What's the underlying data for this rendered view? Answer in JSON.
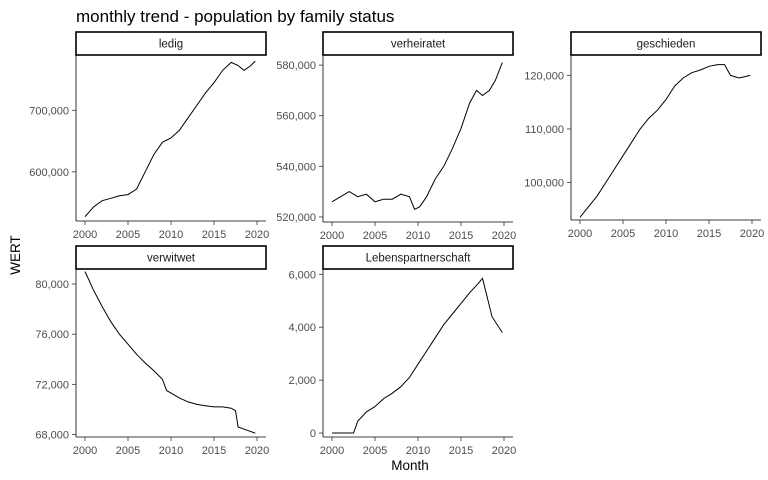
{
  "chart_data": {
    "type": "line",
    "title": "monthly trend - population by family status",
    "xlabel": "Month",
    "ylabel": "WERT",
    "x_ticks": [
      2000,
      2005,
      2010,
      2015,
      2020
    ],
    "xlim": [
      2000,
      2020
    ],
    "grid": false,
    "legend": "none",
    "line_color": "#000000",
    "panels": [
      {
        "name": "ledig",
        "ylim": [
          520000,
          790000
        ],
        "y_ticks": [
          600000,
          700000
        ],
        "y_tick_labels": [
          "600,000",
          "700,000"
        ],
        "points": [
          [
            2000,
            527000
          ],
          [
            2001,
            543000
          ],
          [
            2002,
            553000
          ],
          [
            2003,
            557000
          ],
          [
            2004,
            561000
          ],
          [
            2005,
            563000
          ],
          [
            2006,
            572000
          ],
          [
            2007,
            600000
          ],
          [
            2008,
            628000
          ],
          [
            2009,
            648000
          ],
          [
            2010,
            655000
          ],
          [
            2011,
            668000
          ],
          [
            2012,
            688000
          ],
          [
            2013,
            708000
          ],
          [
            2014,
            728000
          ],
          [
            2015,
            745000
          ],
          [
            2016,
            765000
          ],
          [
            2017,
            778000
          ],
          [
            2017.8,
            773000
          ],
          [
            2018.5,
            765000
          ],
          [
            2019.2,
            772000
          ],
          [
            2019.8,
            780000
          ]
        ]
      },
      {
        "name": "verheiratet",
        "ylim": [
          518000,
          584000
        ],
        "y_ticks": [
          520000,
          540000,
          560000,
          580000
        ],
        "y_tick_labels": [
          "520,000",
          "540,000",
          "560,000",
          "580,000"
        ],
        "points": [
          [
            2000,
            526000
          ],
          [
            2001,
            528000
          ],
          [
            2002,
            530000
          ],
          [
            2003,
            528000
          ],
          [
            2004,
            529000
          ],
          [
            2005,
            526000
          ],
          [
            2006,
            527000
          ],
          [
            2007,
            527000
          ],
          [
            2008,
            529000
          ],
          [
            2009,
            528000
          ],
          [
            2009.6,
            523000
          ],
          [
            2010.2,
            524000
          ],
          [
            2011,
            528000
          ],
          [
            2012,
            535000
          ],
          [
            2013,
            540000
          ],
          [
            2014,
            547000
          ],
          [
            2015,
            555000
          ],
          [
            2016,
            565000
          ],
          [
            2016.8,
            570000
          ],
          [
            2017.5,
            568000
          ],
          [
            2018.3,
            570000
          ],
          [
            2019,
            574000
          ],
          [
            2019.8,
            581000
          ]
        ]
      },
      {
        "name": "geschieden",
        "ylim": [
          93000,
          123800
        ],
        "y_ticks": [
          100000,
          110000,
          120000
        ],
        "y_tick_labels": [
          "100,000",
          "110,000",
          "120,000"
        ],
        "points": [
          [
            2000,
            93500
          ],
          [
            2001,
            95500
          ],
          [
            2002,
            97500
          ],
          [
            2003,
            100000
          ],
          [
            2004,
            102500
          ],
          [
            2005,
            105000
          ],
          [
            2006,
            107500
          ],
          [
            2007,
            110000
          ],
          [
            2008,
            112000
          ],
          [
            2009,
            113500
          ],
          [
            2010,
            115500
          ],
          [
            2011,
            118000
          ],
          [
            2012,
            119500
          ],
          [
            2013,
            120500
          ],
          [
            2014,
            121000
          ],
          [
            2015,
            121700
          ],
          [
            2016,
            122000
          ],
          [
            2016.8,
            122000
          ],
          [
            2017.5,
            120000
          ],
          [
            2018.5,
            119500
          ],
          [
            2019.8,
            120000
          ]
        ]
      },
      {
        "name": "verwitwet",
        "ylim": [
          67800,
          81200
        ],
        "y_ticks": [
          68000,
          72000,
          76000,
          80000
        ],
        "y_tick_labels": [
          "68,000",
          "72,000",
          "76,000",
          "80,000"
        ],
        "points": [
          [
            2000,
            81000
          ],
          [
            2001,
            79500
          ],
          [
            2002,
            78200
          ],
          [
            2003,
            77000
          ],
          [
            2004,
            76000
          ],
          [
            2005,
            75200
          ],
          [
            2006,
            74400
          ],
          [
            2007,
            73700
          ],
          [
            2008,
            73100
          ],
          [
            2009,
            72400
          ],
          [
            2009.5,
            71500
          ],
          [
            2010,
            71300
          ],
          [
            2011,
            70900
          ],
          [
            2012,
            70600
          ],
          [
            2013,
            70400
          ],
          [
            2014,
            70300
          ],
          [
            2015,
            70200
          ],
          [
            2016,
            70200
          ],
          [
            2017,
            70100
          ],
          [
            2017.5,
            69900
          ],
          [
            2017.8,
            68600
          ],
          [
            2019,
            68300
          ],
          [
            2019.8,
            68100
          ]
        ]
      },
      {
        "name": "Lebenspartnerschaft",
        "ylim": [
          -150,
          6200
        ],
        "y_ticks": [
          0,
          2000,
          4000,
          6000
        ],
        "y_tick_labels": [
          "0",
          "2,000",
          "4,000",
          "6,000"
        ],
        "points": [
          [
            2000,
            0
          ],
          [
            2002.5,
            0
          ],
          [
            2003,
            450
          ],
          [
            2004,
            800
          ],
          [
            2005,
            1000
          ],
          [
            2006,
            1300
          ],
          [
            2007,
            1500
          ],
          [
            2008,
            1750
          ],
          [
            2009,
            2100
          ],
          [
            2010,
            2600
          ],
          [
            2011,
            3100
          ],
          [
            2012,
            3600
          ],
          [
            2013,
            4100
          ],
          [
            2014,
            4500
          ],
          [
            2015,
            4900
          ],
          [
            2016,
            5300
          ],
          [
            2017,
            5650
          ],
          [
            2017.5,
            5850
          ],
          [
            2018,
            5200
          ],
          [
            2018.6,
            4400
          ],
          [
            2019.2,
            4100
          ],
          [
            2019.8,
            3800
          ]
        ]
      }
    ]
  }
}
